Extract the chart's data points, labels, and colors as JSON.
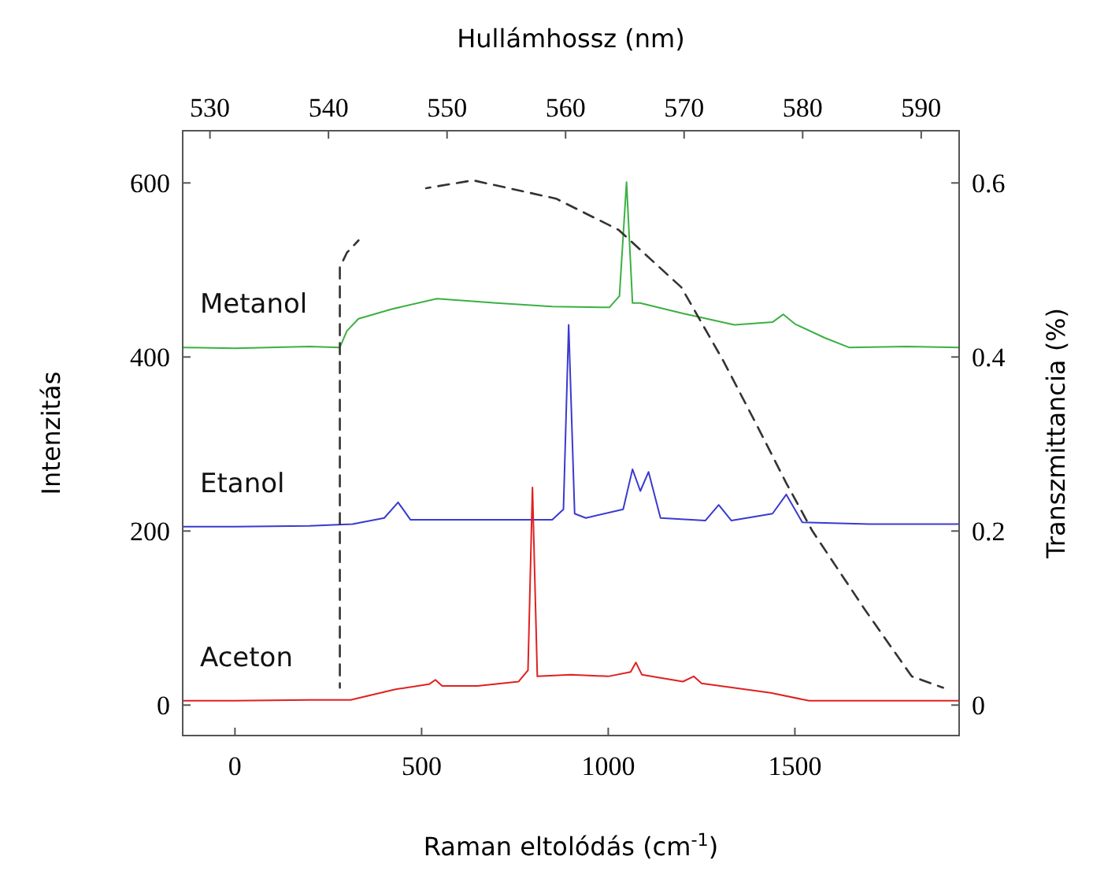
{
  "chart_data": {
    "type": "line",
    "xlabel": "Raman eltolódás (cm$^{-1}$)",
    "x2label": "Hullámhossz (nm)",
    "ylabel": "Intenzitás",
    "y2label": "Transzmittancia (%)",
    "xlim": [
      -140,
      1940
    ],
    "xticks": [
      0,
      500,
      1000,
      1500
    ],
    "x2lim": [
      527.7,
      593.2
    ],
    "x2ticks": [
      530,
      540,
      550,
      560,
      570,
      580,
      590
    ],
    "ylim": [
      -35,
      660
    ],
    "yticks": [
      0,
      200,
      400,
      600
    ],
    "y2lim": [
      -0.035,
      0.66
    ],
    "y2ticks": [
      0,
      0.2,
      0.4,
      0.6
    ],
    "grid": false,
    "series": [
      {
        "name": "Metanol",
        "color": "#3cb043",
        "x": [
          -140,
          0,
          200,
          281,
          300,
          331,
          420,
          541,
          700,
          850,
          1003,
          1030,
          1049,
          1065,
          1085,
          1200,
          1338,
          1440,
          1469,
          1500,
          1580,
          1645,
          1800,
          1940
        ],
        "values": [
          411,
          410,
          412,
          411,
          430,
          444,
          455,
          467,
          462,
          458,
          457,
          470,
          601,
          462,
          462,
          450,
          437,
          440,
          449,
          438,
          422,
          411,
          412,
          411
        ]
      },
      {
        "name": "Etanol",
        "color": "#3a3ad0",
        "x": [
          -140,
          0,
          200,
          315,
          400,
          437,
          470,
          600,
          850,
          880,
          894,
          910,
          940,
          1040,
          1065,
          1086,
          1108,
          1140,
          1260,
          1296,
          1330,
          1440,
          1477,
          1520,
          1700,
          1940
        ],
        "values": [
          205,
          205,
          206,
          208,
          215,
          233,
          213,
          213,
          213,
          225,
          437,
          220,
          215,
          225,
          271,
          246,
          268,
          215,
          212,
          230,
          212,
          220,
          242,
          210,
          208,
          208
        ]
      },
      {
        "name": "Aceton",
        "color": "#e02020",
        "x": [
          -140,
          0,
          200,
          310,
          428,
          520,
          537,
          555,
          650,
          760,
          785,
          797,
          810,
          900,
          1000,
          1060,
          1074,
          1090,
          1200,
          1229,
          1250,
          1435,
          1538,
          1940
        ],
        "values": [
          5,
          5,
          6,
          6,
          18,
          24,
          29,
          22,
          22,
          27,
          40,
          250,
          33,
          35,
          33,
          38,
          49,
          35,
          27,
          33,
          25,
          14,
          5,
          5
        ]
      },
      {
        "type": "line",
        "axis": "y2",
        "line_style": "dashed",
        "color": "#333333",
        "x": [
          281,
          281,
          300,
          331,
          420,
          512,
          638,
          860,
          1028,
          1196,
          1309,
          1400,
          1477,
          1547,
          1687,
          1813,
          1897
        ],
        "values": [
          0.02,
          0.503,
          0.52,
          0.534,
          null,
          0.594,
          0.603,
          0.582,
          0.546,
          0.48,
          0.395,
          0.32,
          0.255,
          0.2,
          0.11,
          0.033,
          0.02
        ]
      }
    ]
  }
}
